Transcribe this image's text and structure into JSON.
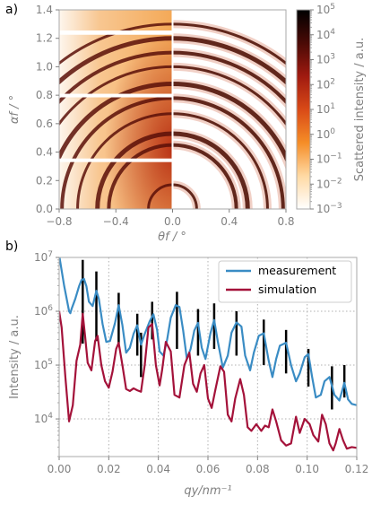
{
  "chart_data": [
    {
      "panel": "a)",
      "type": "heatmap",
      "xlabel": "θf / °",
      "ylabel": "αf / °",
      "xlim": [
        -0.8,
        0.8
      ],
      "ylim": [
        0.0,
        1.4
      ],
      "xticks": [
        "-0.8",
        "-0.4",
        "0.0",
        "0.4",
        "0.8"
      ],
      "yticks": [
        "0.0",
        "0.2",
        "0.4",
        "0.6",
        "0.8",
        "1.0",
        "1.2",
        "1.4"
      ],
      "colorbar": {
        "label": "Scattered intensity / a.u.",
        "scale": "log",
        "range": [
          0.001,
          100000
        ],
        "ticks": [
          {
            "base": "10",
            "exp": "5"
          },
          {
            "base": "10",
            "exp": "4"
          },
          {
            "base": "10",
            "exp": "3"
          },
          {
            "base": "10",
            "exp": "2"
          },
          {
            "base": "10",
            "exp": "1"
          },
          {
            "base": "10",
            "exp": "0"
          },
          {
            "base": "10",
            "exp": "−1"
          },
          {
            "base": "10",
            "exp": "−2"
          },
          {
            "base": "10",
            "exp": "−3"
          }
        ],
        "colors": [
          "#ffffff",
          "#ffd9a3",
          "#f58d27",
          "#d94a17",
          "#a01a10",
          "#4a0a06",
          "#000000"
        ]
      },
      "left_half": "measurement",
      "right_half": "simulation",
      "detector_gaps_alpha": [
        [
          0.785,
          0.81
        ],
        [
          1.225,
          1.255
        ],
        [
          0.33,
          0.355
        ]
      ],
      "ring_radii": [
        0.17,
        0.45,
        0.53,
        0.67,
        0.78,
        0.88,
        1.0,
        1.1,
        1.2,
        1.3
      ]
    },
    {
      "panel": "b)",
      "type": "line",
      "xlabel": "qy/nm⁻¹",
      "ylabel": "Intensity / a.u.",
      "xlim": [
        0.0,
        0.12
      ],
      "ylim": [
        2000,
        10000000
      ],
      "yscale": "log",
      "grid": true,
      "legend": "top-right",
      "xticks": [
        "0.00",
        "0.02",
        "0.04",
        "0.06",
        "0.08",
        "0.10",
        "0.12"
      ],
      "yticks": [
        {
          "base": "10",
          "exp": "4"
        },
        {
          "base": "10",
          "exp": "5"
        },
        {
          "base": "10",
          "exp": "6"
        },
        {
          "base": "10",
          "exp": "7"
        }
      ],
      "series": [
        {
          "name": "measurement",
          "color": "#3a8cc4",
          "points": [
            [
              0.0,
              11000000
            ],
            [
              0.002,
              3000000
            ],
            [
              0.004,
              1000000
            ],
            [
              0.0045,
              920000
            ],
            [
              0.005,
              1100000
            ],
            [
              0.0065,
              1700000
            ],
            [
              0.008,
              2900000
            ],
            [
              0.009,
              3800000
            ],
            [
              0.01,
              4000000
            ],
            [
              0.011,
              2900000
            ],
            [
              0.012,
              1500000
            ],
            [
              0.0135,
              1250000
            ],
            [
              0.015,
              2400000
            ],
            [
              0.016,
              1700000
            ],
            [
              0.0175,
              580000
            ],
            [
              0.019,
              270000
            ],
            [
              0.0205,
              280000
            ],
            [
              0.0225,
              600000
            ],
            [
              0.024,
              1300000
            ],
            [
              0.0255,
              550000
            ],
            [
              0.027,
              170000
            ],
            [
              0.0285,
              210000
            ],
            [
              0.03,
              380000
            ],
            [
              0.0315,
              550000
            ],
            [
              0.033,
              240000
            ],
            [
              0.0345,
              380000
            ],
            [
              0.0365,
              650000
            ],
            [
              0.038,
              880000
            ],
            [
              0.0395,
              450000
            ],
            [
              0.0405,
              180000
            ],
            [
              0.042,
              150000
            ],
            [
              0.0435,
              290000
            ],
            [
              0.045,
              760000
            ],
            [
              0.047,
              1300000
            ],
            [
              0.0485,
              1200000
            ],
            [
              0.05,
              440000
            ],
            [
              0.0515,
              130000
            ],
            [
              0.053,
              200000
            ],
            [
              0.0545,
              440000
            ],
            [
              0.056,
              610000
            ],
            [
              0.0575,
              210000
            ],
            [
              0.059,
              130000
            ],
            [
              0.061,
              390000
            ],
            [
              0.0625,
              690000
            ],
            [
              0.064,
              270000
            ],
            [
              0.066,
              90000
            ],
            [
              0.068,
              150000
            ],
            [
              0.0695,
              400000
            ],
            [
              0.0715,
              620000
            ],
            [
              0.0735,
              520000
            ],
            [
              0.075,
              150000
            ],
            [
              0.077,
              80000
            ],
            [
              0.0785,
              170000
            ],
            [
              0.0805,
              350000
            ],
            [
              0.0825,
              390000
            ],
            [
              0.0845,
              120000
            ],
            [
              0.086,
              60000
            ],
            [
              0.0875,
              130000
            ],
            [
              0.089,
              230000
            ],
            [
              0.0915,
              260000
            ],
            [
              0.0935,
              100000
            ],
            [
              0.0955,
              50000
            ],
            [
              0.097,
              70000
            ],
            [
              0.099,
              140000
            ],
            [
              0.1005,
              160000
            ],
            [
              0.102,
              60000
            ],
            [
              0.1035,
              25000
            ],
            [
              0.1055,
              28000
            ],
            [
              0.107,
              50000
            ],
            [
              0.109,
              60000
            ],
            [
              0.111,
              28000
            ],
            [
              0.113,
              22000
            ],
            [
              0.115,
              47000
            ],
            [
              0.1165,
              23000
            ],
            [
              0.118,
              19000
            ],
            [
              0.12,
              18000
            ]
          ]
        },
        {
          "name": "simulation",
          "color": "#a4123a",
          "points": [
            [
              0.0,
              1000000
            ],
            [
              0.001,
              500000
            ],
            [
              0.0025,
              60000
            ],
            [
              0.004,
              9000
            ],
            [
              0.0055,
              18000
            ],
            [
              0.007,
              120000
            ],
            [
              0.0085,
              240000
            ],
            [
              0.0095,
              900000
            ],
            [
              0.0105,
              330000
            ],
            [
              0.0115,
              110000
            ],
            [
              0.013,
              80000
            ],
            [
              0.0145,
              280000
            ],
            [
              0.0155,
              350000
            ],
            [
              0.017,
              100000
            ],
            [
              0.0185,
              50000
            ],
            [
              0.02,
              38000
            ],
            [
              0.0215,
              75000
            ],
            [
              0.023,
              200000
            ],
            [
              0.024,
              260000
            ],
            [
              0.0255,
              100000
            ],
            [
              0.027,
              36000
            ],
            [
              0.0285,
              33000
            ],
            [
              0.03,
              37000
            ],
            [
              0.0315,
              34000
            ],
            [
              0.033,
              32000
            ],
            [
              0.0345,
              100000
            ],
            [
              0.036,
              500000
            ],
            [
              0.0375,
              580000
            ],
            [
              0.039,
              100000
            ],
            [
              0.0405,
              42000
            ],
            [
              0.0415,
              80000
            ],
            [
              0.043,
              270000
            ],
            [
              0.045,
              180000
            ],
            [
              0.0465,
              28000
            ],
            [
              0.0485,
              25000
            ],
            [
              0.0505,
              100000
            ],
            [
              0.0525,
              170000
            ],
            [
              0.054,
              45000
            ],
            [
              0.0555,
              32000
            ],
            [
              0.057,
              70000
            ],
            [
              0.0585,
              100000
            ],
            [
              0.06,
              24000
            ],
            [
              0.0615,
              16000
            ],
            [
              0.063,
              35000
            ],
            [
              0.065,
              95000
            ],
            [
              0.0665,
              75000
            ],
            [
              0.068,
              12000
            ],
            [
              0.0695,
              9000
            ],
            [
              0.071,
              24000
            ],
            [
              0.073,
              55000
            ],
            [
              0.0745,
              28000
            ],
            [
              0.076,
              7000
            ],
            [
              0.0775,
              6000
            ],
            [
              0.0795,
              8000
            ],
            [
              0.0815,
              6000
            ],
            [
              0.083,
              7500
            ],
            [
              0.0845,
              7000
            ],
            [
              0.086,
              15000
            ],
            [
              0.0875,
              9000
            ],
            [
              0.0895,
              4000
            ],
            [
              0.0915,
              3200
            ],
            [
              0.0935,
              3500
            ],
            [
              0.0955,
              11000
            ],
            [
              0.097,
              5500
            ],
            [
              0.099,
              10000
            ],
            [
              0.101,
              8000
            ],
            [
              0.1025,
              5000
            ],
            [
              0.1045,
              3800
            ],
            [
              0.106,
              12000
            ],
            [
              0.1075,
              8000
            ],
            [
              0.109,
              3500
            ],
            [
              0.1105,
              2600
            ],
            [
              0.1115,
              3500
            ],
            [
              0.113,
              6500
            ],
            [
              0.1145,
              4000
            ],
            [
              0.116,
              2800
            ],
            [
              0.118,
              3000
            ],
            [
              0.12,
              2900
            ]
          ]
        }
      ],
      "error_bars": [
        [
          0.0095,
          250000,
          9000000
        ],
        [
          0.015,
          280000,
          5500000
        ],
        [
          0.024,
          250000,
          2200000
        ],
        [
          0.0315,
          150000,
          900000
        ],
        [
          0.033,
          60000,
          400000
        ],
        [
          0.0375,
          300000,
          1500000
        ],
        [
          0.0475,
          200000,
          2300000
        ],
        [
          0.056,
          150000,
          1100000
        ],
        [
          0.0625,
          200000,
          1400000
        ],
        [
          0.0715,
          150000,
          1000000
        ],
        [
          0.0825,
          100000,
          700000
        ],
        [
          0.0915,
          70000,
          450000
        ],
        [
          0.1005,
          40000,
          200000
        ],
        [
          0.11,
          15000,
          95000
        ],
        [
          0.115,
          25000,
          100000
        ]
      ]
    }
  ]
}
